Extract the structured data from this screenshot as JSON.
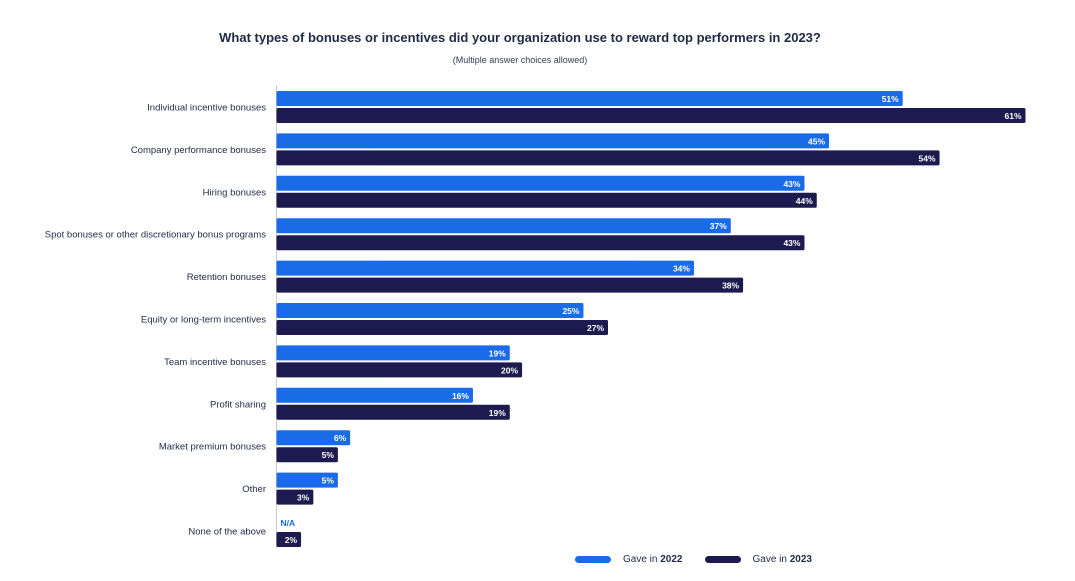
{
  "chart_data": {
    "type": "bar",
    "orientation": "horizontal",
    "title": "What types of bonuses or incentives did your organization use to reward top performers in 2023?",
    "subtitle": "(Multiple answer choices allowed)",
    "categories": [
      "Individual incentive bonuses",
      "Company performance bonuses",
      "Hiring bonuses",
      "Spot bonuses or other discretionary bonus programs",
      "Retention bonuses",
      "Equity or long-term incentives",
      "Team incentive bonuses",
      "Profit sharing",
      "Market premium bonuses",
      "Other",
      "None of the above"
    ],
    "series": [
      {
        "name": "Gave in 2022",
        "color": "#1a6be8",
        "values": [
          51,
          45,
          43,
          37,
          34,
          25,
          19,
          16,
          6,
          5,
          null
        ],
        "labels": [
          "51%",
          "45%",
          "43%",
          "37%",
          "34%",
          "25%",
          "19%",
          "16%",
          "6%",
          "5%",
          "N/A"
        ]
      },
      {
        "name": "Gave in 2023",
        "color": "#1c1a4f",
        "values": [
          61,
          54,
          44,
          43,
          38,
          27,
          20,
          19,
          5,
          3,
          2
        ],
        "labels": [
          "61%",
          "54%",
          "44%",
          "43%",
          "38%",
          "27%",
          "20%",
          "19%",
          "5%",
          "3%",
          "2%"
        ]
      }
    ],
    "xlim": [
      0,
      61
    ],
    "grid": false,
    "legend_position": "bottom-right"
  },
  "legend": {
    "prefix": "Gave in",
    "item_2022_year": "2022",
    "item_2023_year": "2023"
  }
}
